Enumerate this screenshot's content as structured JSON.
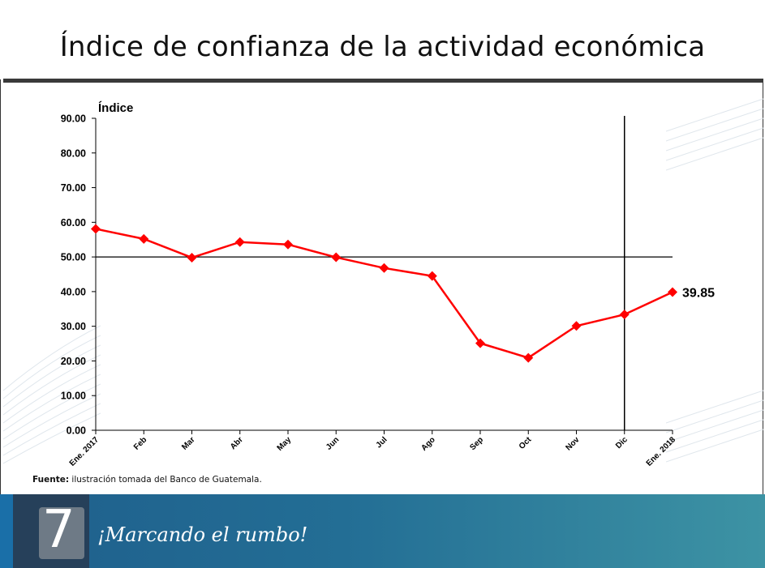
{
  "slide": {
    "title": "Índice de confianza de la actividad económica",
    "source_label": "Fuente:",
    "source_text": " ilustración tomada del Banco de Guatemala.",
    "footer_slogan": "¡Marcando el rumbo!",
    "footer_number": "7"
  },
  "chart_data": {
    "type": "line",
    "title": "",
    "ylabel": "Índice",
    "xlabel": "",
    "ylim": [
      0,
      90
    ],
    "yticks": [
      "0.00",
      "10.00",
      "20.00",
      "30.00",
      "40.00",
      "50.00",
      "60.00",
      "70.00",
      "80.00",
      "90.00"
    ],
    "categories": [
      "Ene. 2017",
      "Feb",
      "Mar",
      "Abr",
      "May",
      "Jun",
      "Jul",
      "Ago",
      "Sep",
      "Oct",
      "Nov",
      "Dic",
      "Ene. 2018"
    ],
    "series": [
      {
        "values": [
          58.1,
          55.2,
          49.8,
          54.3,
          53.6,
          49.9,
          46.8,
          44.5,
          25.1,
          20.9,
          30.1,
          33.4,
          39.85
        ],
        "color": "#ff0000"
      }
    ],
    "reference_line_y": 50.0,
    "vertical_marker_category": "Dic",
    "end_label": "39.85",
    "grid": false
  }
}
